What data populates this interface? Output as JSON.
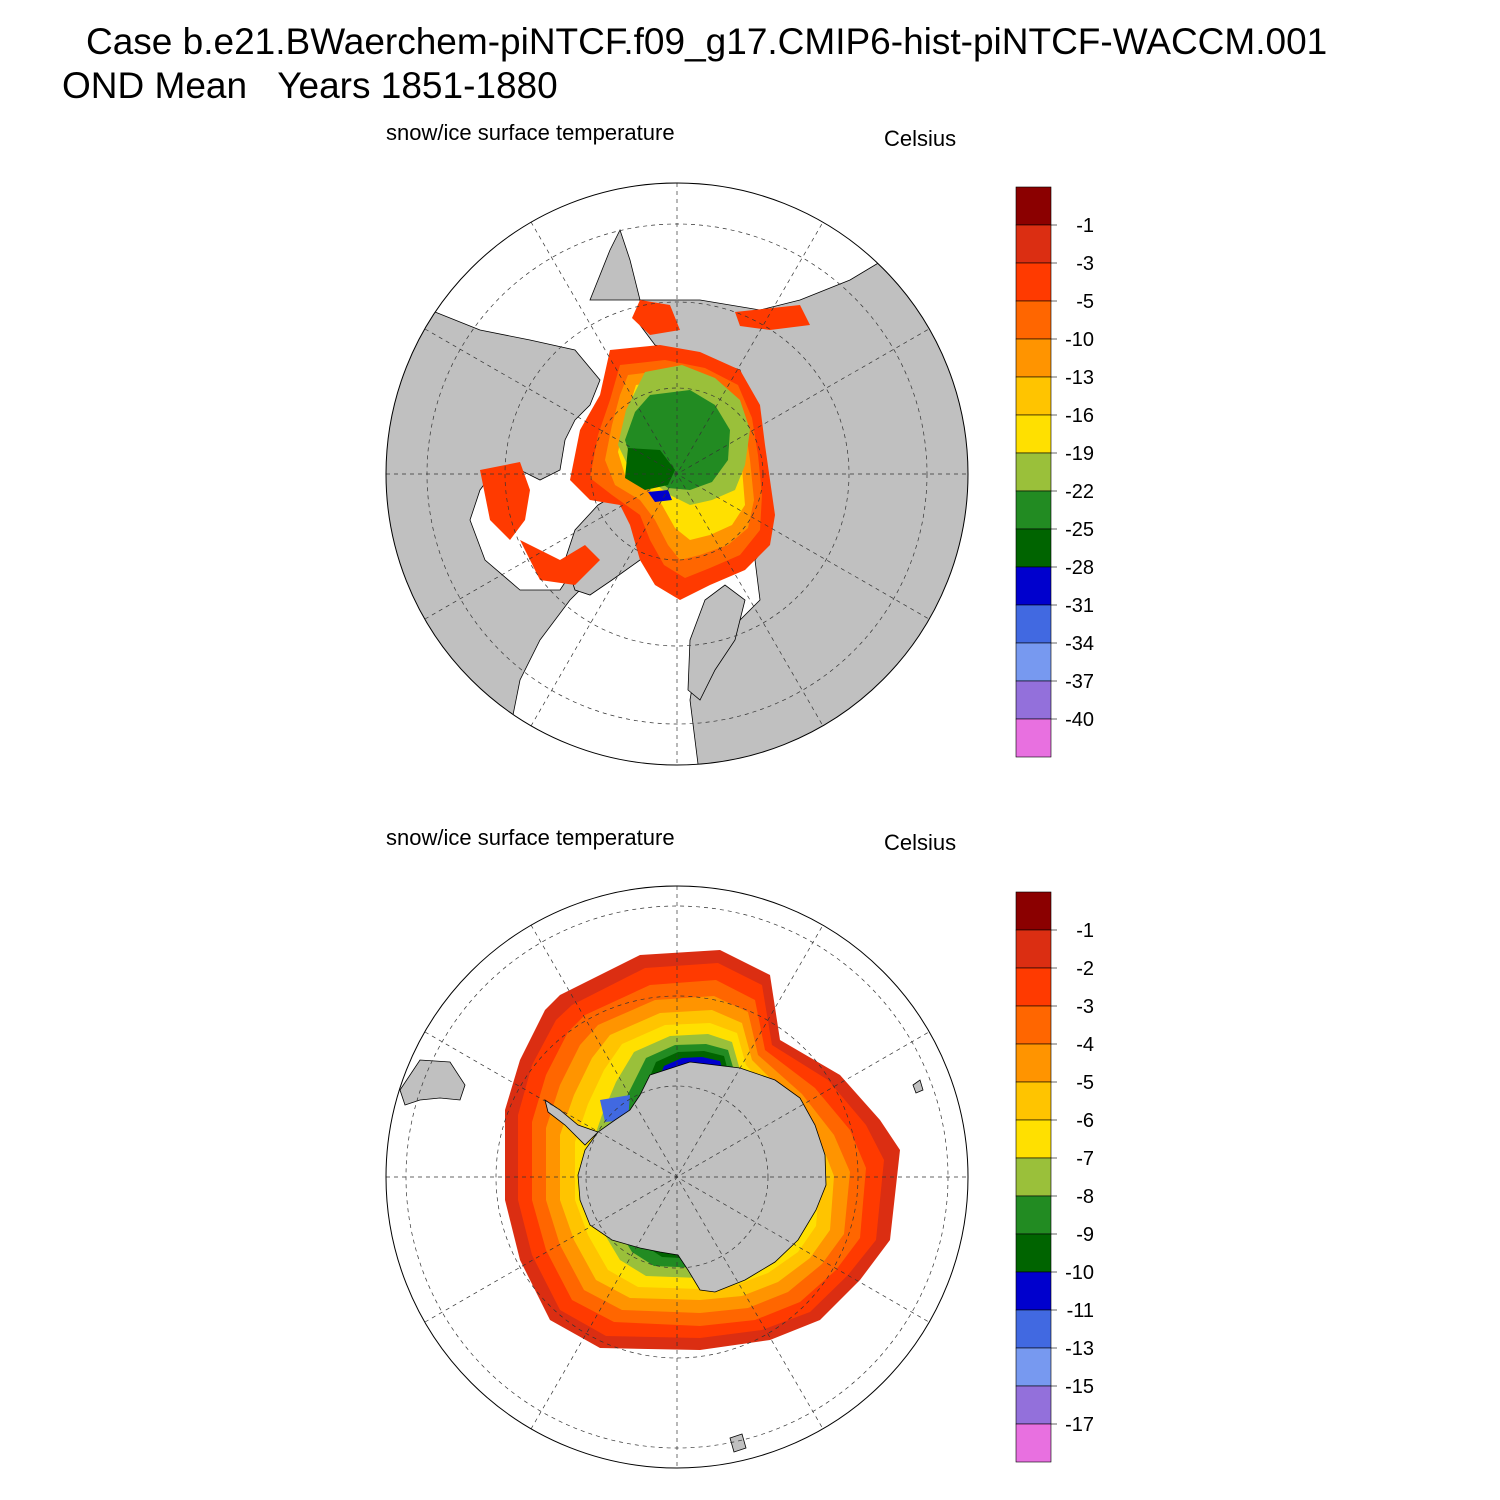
{
  "header": {
    "case_line": "Case b.e21.BWaerchem-piNTCF.f09_g17.CMIP6-hist-piNTCF-WACCM.001",
    "period_line": "OND Mean   Years 1851-1880"
  },
  "colors": {
    "land": "#c0c0c0",
    "ocean": "#ffffff",
    "scale": [
      "#8b0000",
      "#db2e12",
      "#ff3a00",
      "#ff6600",
      "#ff9400",
      "#ffc400",
      "#ffe000",
      "#9ac03a",
      "#228b22",
      "#006400",
      "#0000cd",
      "#4169e1",
      "#7799f0",
      "#9370db",
      "#e870e0"
    ]
  },
  "panels": [
    {
      "id": "north",
      "hemisphere": "Arctic",
      "left_label": "snow/ice surface temperature",
      "right_label": "Celsius",
      "colorbar_labels": [
        "-1",
        "-3",
        "-5",
        "-10",
        "-13",
        "-16",
        "-19",
        "-22",
        "-25",
        "-28",
        "-31",
        "-34",
        "-37",
        "-40"
      ]
    },
    {
      "id": "south",
      "hemisphere": "Antarctic",
      "left_label": "snow/ice surface temperature",
      "right_label": "Celsius",
      "colorbar_labels": [
        "-1",
        "-2",
        "-3",
        "-4",
        "-5",
        "-6",
        "-7",
        "-8",
        "-9",
        "-10",
        "-11",
        "-13",
        "-15",
        "-17"
      ]
    }
  ]
}
